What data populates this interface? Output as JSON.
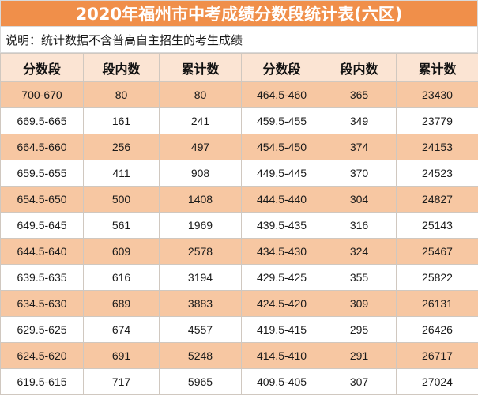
{
  "title": "2020年福州市中考成绩分数段统计表(六区)",
  "note": "说明：统计数据不含普高自主招生的考生成绩",
  "headers": [
    "分数段",
    "段内数",
    "累计数",
    "分数段",
    "段内数",
    "累计数"
  ],
  "rows": [
    [
      "700-670",
      "80",
      "80",
      "464.5-460",
      "365",
      "23430"
    ],
    [
      "669.5-665",
      "161",
      "241",
      "459.5-455",
      "349",
      "23779"
    ],
    [
      "664.5-660",
      "256",
      "497",
      "454.5-450",
      "374",
      "24153"
    ],
    [
      "659.5-655",
      "411",
      "908",
      "449.5-445",
      "370",
      "24523"
    ],
    [
      "654.5-650",
      "500",
      "1408",
      "444.5-440",
      "304",
      "24827"
    ],
    [
      "649.5-645",
      "561",
      "1969",
      "439.5-435",
      "316",
      "25143"
    ],
    [
      "644.5-640",
      "609",
      "2578",
      "434.5-430",
      "324",
      "25467"
    ],
    [
      "639.5-635",
      "616",
      "3194",
      "429.5-425",
      "355",
      "25822"
    ],
    [
      "634.5-630",
      "689",
      "3883",
      "424.5-420",
      "309",
      "26131"
    ],
    [
      "629.5-625",
      "674",
      "4557",
      "419.5-415",
      "295",
      "26426"
    ],
    [
      "624.5-620",
      "691",
      "5248",
      "414.5-410",
      "291",
      "26717"
    ],
    [
      "619.5-615",
      "717",
      "5965",
      "409.5-405",
      "307",
      "27024"
    ]
  ],
  "colors": {
    "title_bg": "#f08f4a",
    "header_bg": "#fbe4d3",
    "row_band": "#f7c7a2",
    "row_plain": "#ffffff"
  }
}
